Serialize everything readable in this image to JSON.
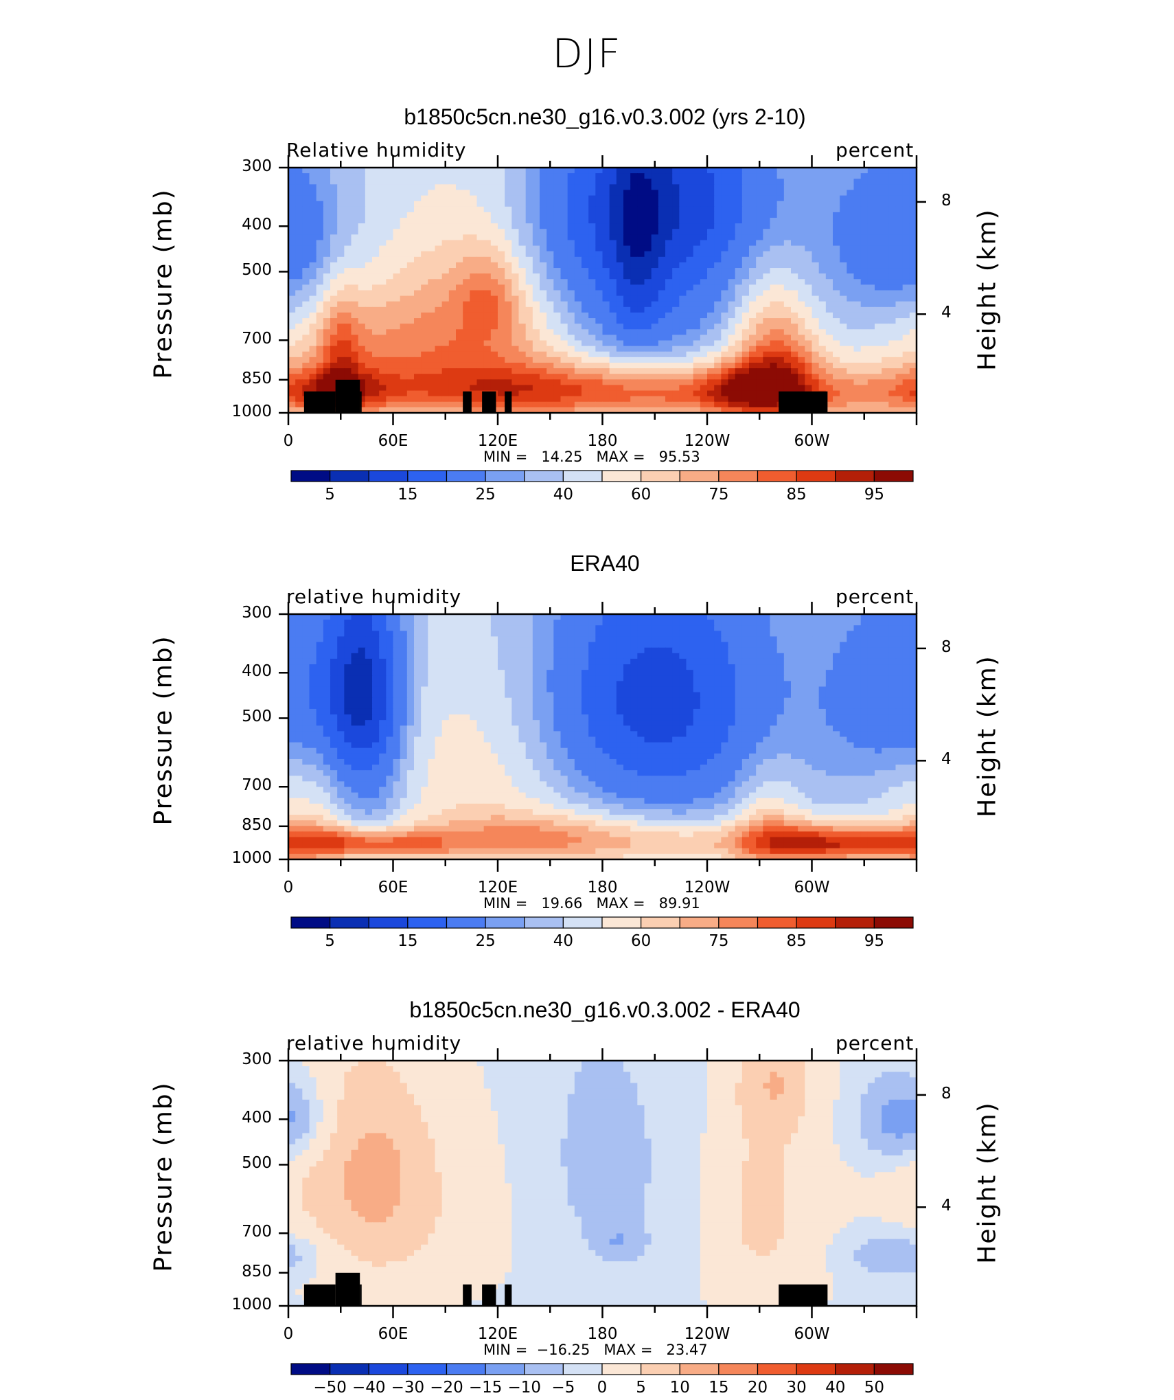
{
  "figure": {
    "title": "DJF"
  },
  "chart_data": [
    {
      "type": "heatmap",
      "title": "b1850c5cn.ne30_g16.v0.3.002 (yrs 2-10)",
      "subtitle_left": "Relative humidity",
      "subtitle_right": "percent",
      "ylabel": "Pressure (mb)",
      "ylabel_right": "Height (km)",
      "x_ticklabels": [
        "0",
        "60E",
        "120E",
        "180",
        "120W",
        "60W"
      ],
      "y_ticklabels": [
        "300",
        "400",
        "500",
        "700",
        "850",
        "1000"
      ],
      "y_right_ticklabels": [
        "8",
        "4"
      ],
      "ylim": [
        1000,
        300
      ],
      "stat_text": "MIN =   14.25   MAX =   95.53",
      "min": 14.25,
      "max": 95.53,
      "colorbar_labels": [
        "5",
        "15",
        "25",
        "40",
        "60",
        "75",
        "85",
        "95"
      ],
      "colorbar_colors": [
        "#000c85",
        "#0a2fb3",
        "#1b48dc",
        "#2d62f0",
        "#4b7cf2",
        "#7aa0f2",
        "#a9c0f2",
        "#d4e1f5",
        "#fbe7d6",
        "#fbcfb2",
        "#f8ac86",
        "#f5865a",
        "#f05d2f",
        "#dd3a12",
        "#b41f08",
        "#8c0b04"
      ],
      "fields": {
        "base": 62,
        "blobs": [
          {
            "x": 355,
            "p": 420,
            "w": 30,
            "h": 120,
            "v": -20
          },
          {
            "x": 215,
            "p": 330,
            "w": 45,
            "h": 110,
            "v": -30
          },
          {
            "x": 50,
            "p": 800,
            "w": 45,
            "h": 150,
            "v": 10
          },
          {
            "x": 35,
            "p": 680,
            "w": 25,
            "h": 230,
            "v": 7
          },
          {
            "x": 110,
            "p": 650,
            "w": 40,
            "h": 150,
            "v": 8
          },
          {
            "x": 200,
            "p": 440,
            "w": 10,
            "h": 180,
            "v": -17
          },
          {
            "x": 40,
            "p": 450,
            "w": 60,
            "h": 200,
            "v": -2
          },
          {
            "x": 25,
            "p": 900,
            "w": 25,
            "h": 60,
            "v": 18
          },
          {
            "x": 30,
            "p": 760,
            "w": 8,
            "h": 180,
            "v": 13
          },
          {
            "x": 115,
            "p": 600,
            "w": 40,
            "h": 220,
            "v": 16
          },
          {
            "x": 115,
            "p": 560,
            "w": 12,
            "h": 80,
            "v": 10
          },
          {
            "x": 130,
            "p": 900,
            "w": 50,
            "h": 80,
            "v": 15
          },
          {
            "x": 190,
            "p": 500,
            "w": 45,
            "h": 160,
            "v": -18
          },
          {
            "x": 205,
            "p": 580,
            "w": 75,
            "h": 220,
            "v": -8
          },
          {
            "x": 245,
            "p": 900,
            "w": 100,
            "h": 95,
            "v": 22
          },
          {
            "x": 275,
            "p": 720,
            "w": 18,
            "h": 200,
            "v": 18
          },
          {
            "x": 285,
            "p": 800,
            "w": 15,
            "h": 130,
            "v": 12
          },
          {
            "x": 278,
            "p": 930,
            "w": 45,
            "h": 50,
            "v": 6
          },
          {
            "x": 260,
            "p": 880,
            "w": 15,
            "h": 70,
            "v": 15
          }
        ]
      }
    },
    {
      "type": "heatmap",
      "title": "ERA40",
      "subtitle_left": "relative humidity",
      "subtitle_right": "percent",
      "ylabel": "Pressure (mb)",
      "ylabel_right": "Height (km)",
      "x_ticklabels": [
        "0",
        "60E",
        "120E",
        "180",
        "120W",
        "60W"
      ],
      "y_ticklabels": [
        "300",
        "400",
        "500",
        "700",
        "850",
        "1000"
      ],
      "y_right_ticklabels": [
        "8",
        "4"
      ],
      "ylim": [
        1000,
        300
      ],
      "stat_text": "MIN =   19.66   MAX =   89.91",
      "min": 19.66,
      "max": 89.91,
      "colorbar_labels": [
        "5",
        "15",
        "25",
        "40",
        "60",
        "75",
        "85",
        "95"
      ],
      "colorbar_colors": [
        "#000c85",
        "#0a2fb3",
        "#1b48dc",
        "#2d62f0",
        "#4b7cf2",
        "#7aa0f2",
        "#a9c0f2",
        "#d4e1f5",
        "#fbe7d6",
        "#fbcfb2",
        "#f8ac86",
        "#f5865a",
        "#f05d2f",
        "#dd3a12",
        "#b41f08",
        "#8c0b04"
      ],
      "fields": {
        "base": 60,
        "blobs": [
          {
            "x": 355,
            "p": 450,
            "w": 30,
            "h": 150,
            "v": -20
          },
          {
            "x": 42,
            "p": 430,
            "w": 16,
            "h": 150,
            "v": -35
          },
          {
            "x": 45,
            "p": 700,
            "w": 15,
            "h": 300,
            "v": -12
          },
          {
            "x": 10,
            "p": 750,
            "w": 25,
            "h": 250,
            "v": 8
          },
          {
            "x": 25,
            "p": 920,
            "w": 30,
            "h": 60,
            "v": 17
          },
          {
            "x": 115,
            "p": 620,
            "w": 45,
            "h": 250,
            "v": 12
          },
          {
            "x": 140,
            "p": 900,
            "w": 50,
            "h": 80,
            "v": 16
          },
          {
            "x": 210,
            "p": 450,
            "w": 40,
            "h": 180,
            "v": -24
          },
          {
            "x": 200,
            "p": 500,
            "w": 70,
            "h": 250,
            "v": -12
          },
          {
            "x": 260,
            "p": 920,
            "w": 80,
            "h": 70,
            "v": 13
          },
          {
            "x": 275,
            "p": 850,
            "w": 15,
            "h": 180,
            "v": 13
          },
          {
            "x": 300,
            "p": 920,
            "w": 25,
            "h": 60,
            "v": 16
          },
          {
            "x": 330,
            "p": 930,
            "w": 30,
            "h": 50,
            "v": 12
          },
          {
            "x": 60,
            "p": 930,
            "w": 30,
            "h": 40,
            "v": 15
          }
        ]
      }
    },
    {
      "type": "heatmap",
      "title": "b1850c5cn.ne30_g16.v0.3.002 - ERA40",
      "subtitle_left": "relative humidity",
      "subtitle_right": "percent",
      "ylabel": "Pressure (mb)",
      "ylabel_right": "Height (km)",
      "x_ticklabels": [
        "0",
        "60E",
        "120E",
        "180",
        "120W",
        "60W"
      ],
      "y_ticklabels": [
        "300",
        "400",
        "500",
        "700",
        "850",
        "1000"
      ],
      "y_right_ticklabels": [
        "8",
        "4"
      ],
      "ylim": [
        1000,
        300
      ],
      "stat_text": "MIN =  −16.25   MAX =   23.47",
      "min": -16.25,
      "max": 23.47,
      "colorbar_labels": [
        "−50",
        "−40",
        "−30",
        "−20",
        "−15",
        "−10",
        "−5",
        "0",
        "5",
        "10",
        "15",
        "20",
        "30",
        "40",
        "50"
      ],
      "colorbar_colors": [
        "#000c85",
        "#0a2fb3",
        "#1b48dc",
        "#2d62f0",
        "#4b7cf2",
        "#7aa0f2",
        "#a9c0f2",
        "#d4e1f5",
        "#fbe7d6",
        "#fbcfb2",
        "#f8ac86",
        "#f5865a",
        "#f05d2f",
        "#dd3a12",
        "#b41f08",
        "#8c0b04"
      ],
      "fields": {
        "base": 1,
        "blobs": [
          {
            "x": 55,
            "p": 520,
            "w": 25,
            "h": 180,
            "v": 10
          },
          {
            "x": 20,
            "p": 500,
            "w": 30,
            "h": 200,
            "v": 5
          },
          {
            "x": 5,
            "p": 400,
            "w": 15,
            "h": 60,
            "v": -8
          },
          {
            "x": 170,
            "p": 500,
            "w": 60,
            "h": 300,
            "v": -4
          },
          {
            "x": 190,
            "p": 730,
            "w": 8,
            "h": 40,
            "v": -6
          },
          {
            "x": 270,
            "p": 600,
            "w": 25,
            "h": 300,
            "v": 8
          },
          {
            "x": 350,
            "p": 780,
            "w": 20,
            "h": 60,
            "v": -9
          },
          {
            "x": 115,
            "p": 550,
            "w": 25,
            "h": 250,
            "v": 4
          },
          {
            "x": 345,
            "p": 400,
            "w": 15,
            "h": 60,
            "v": -9
          },
          {
            "x": 60,
            "p": 800,
            "w": 40,
            "h": 150,
            "v": 3
          },
          {
            "x": 280,
            "p": 330,
            "w": 15,
            "h": 60,
            "v": 7
          }
        ]
      }
    }
  ],
  "topography_note": "black masks"
}
